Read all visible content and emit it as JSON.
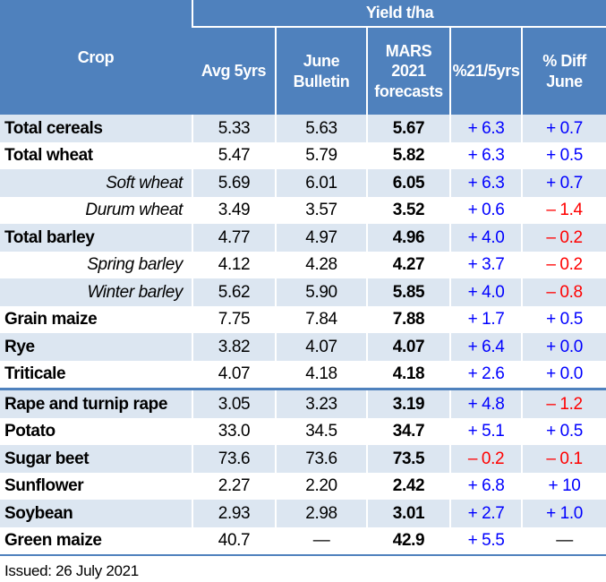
{
  "colors": {
    "header_bg": "#4F81BD",
    "header_text": "#FFFFFF",
    "row_alt_bg": "#DCE6F1",
    "row_bg": "#FFFFFF",
    "positive_value": "#0000FF",
    "negative_value": "#FF0000",
    "no_data_value": "#000000",
    "separator_line": "#4F81BD"
  },
  "header": {
    "crop_label": "Crop",
    "yield_group_label": "Yield t/ha",
    "columns": [
      "Avg 5yrs",
      "June\nBulletin",
      "MARS\n2021\nforecasts",
      "%21/5yrs",
      "% Diff\nJune"
    ]
  },
  "rows": [
    {
      "crop": "Total cereals",
      "style": "main",
      "values": [
        "5.33",
        "5.63",
        "5.67",
        "+ 6.3",
        "+ 0.7"
      ]
    },
    {
      "crop": "Total wheat",
      "style": "main",
      "values": [
        "5.47",
        "5.79",
        "5.82",
        "+ 6.3",
        "+ 0.5"
      ]
    },
    {
      "crop": "Soft wheat",
      "style": "sub",
      "values": [
        "5.69",
        "6.01",
        "6.05",
        "+ 6.3",
        "+ 0.7"
      ]
    },
    {
      "crop": "Durum wheat",
      "style": "sub",
      "values": [
        "3.49",
        "3.57",
        "3.52",
        "+ 0.6",
        "– 1.4"
      ]
    },
    {
      "crop": "Total barley",
      "style": "main",
      "values": [
        "4.77",
        "4.97",
        "4.96",
        "+ 4.0",
        "– 0.2"
      ]
    },
    {
      "crop": "Spring barley",
      "style": "sub",
      "values": [
        "4.12",
        "4.28",
        "4.27",
        "+ 3.7",
        "– 0.2"
      ]
    },
    {
      "crop": "Winter barley",
      "style": "sub",
      "values": [
        "5.62",
        "5.90",
        "5.85",
        "+ 4.0",
        "– 0.8"
      ]
    },
    {
      "crop": "Grain maize",
      "style": "main",
      "values": [
        "7.75",
        "7.84",
        "7.88",
        "+ 1.7",
        "+ 0.5"
      ]
    },
    {
      "crop": "Rye",
      "style": "main",
      "values": [
        "3.82",
        "4.07",
        "4.07",
        "+ 6.4",
        "+ 0.0"
      ]
    },
    {
      "crop": "Triticale",
      "style": "main",
      "values": [
        "4.07",
        "4.18",
        "4.18",
        "+ 2.6",
        "+ 0.0"
      ]
    },
    {
      "crop": "Rape and turnip rape",
      "style": "main",
      "separator_above": true,
      "values": [
        "3.05",
        "3.23",
        "3.19",
        "+ 4.8",
        "– 1.2"
      ]
    },
    {
      "crop": "Potato",
      "style": "main",
      "values": [
        "33.0",
        "34.5",
        "34.7",
        "+ 5.1",
        "+ 0.5"
      ]
    },
    {
      "crop": "Sugar beet",
      "style": "main",
      "values": [
        "73.6",
        "73.6",
        "73.5",
        "– 0.2",
        "– 0.1"
      ]
    },
    {
      "crop": "Sunflower",
      "style": "main",
      "values": [
        "2.27",
        "2.20",
        "2.42",
        "+ 6.8",
        "+ 10"
      ]
    },
    {
      "crop": "Soybean",
      "style": "main",
      "values": [
        "2.93",
        "2.98",
        "3.01",
        "+ 2.7",
        "+ 1.0"
      ]
    },
    {
      "crop": "Green maize",
      "style": "main",
      "values": [
        "40.7",
        "—",
        "42.9",
        "+ 5.5",
        "—"
      ]
    }
  ],
  "footer": {
    "issued": "Issued: 26 July 2021"
  }
}
